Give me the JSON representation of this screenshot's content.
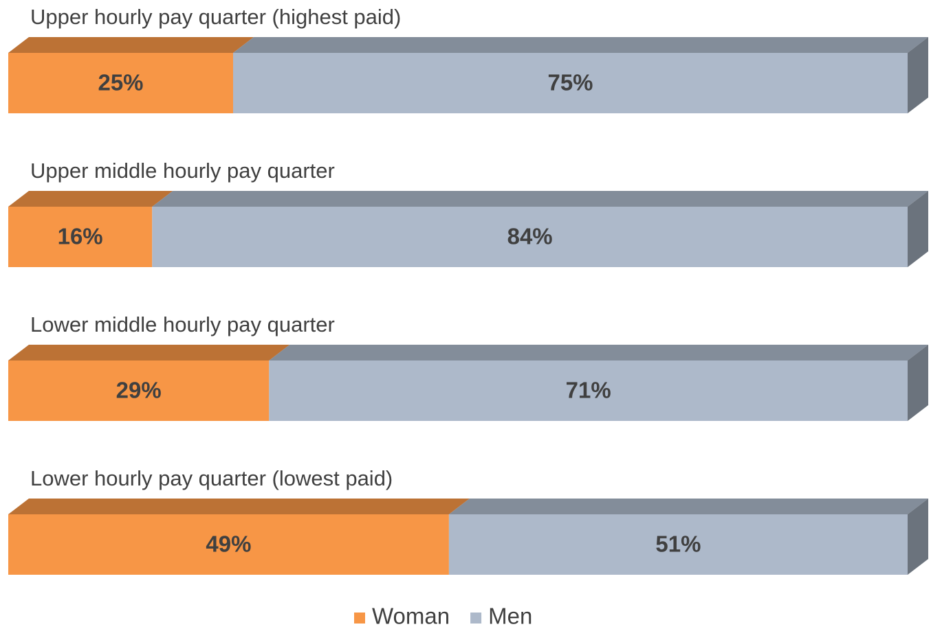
{
  "chart_data": {
    "type": "bar",
    "orientation": "horizontal",
    "stacked": true,
    "categories": [
      "Upper hourly pay quarter (highest paid)",
      "Upper middle hourly pay quarter",
      "Lower middle hourly pay quarter",
      "Lower hourly pay quarter (lowest paid)"
    ],
    "series": [
      {
        "name": "Woman",
        "color": "#f79646",
        "values": [
          25,
          16,
          29,
          49
        ],
        "value_labels": [
          "25%",
          "16%",
          "29%",
          "49%"
        ]
      },
      {
        "name": "Men",
        "color": "#adb9ca",
        "values": [
          75,
          84,
          71,
          51
        ],
        "value_labels": [
          "75%",
          "84%",
          "71%",
          "51%"
        ]
      }
    ],
    "legend": "bottom"
  }
}
